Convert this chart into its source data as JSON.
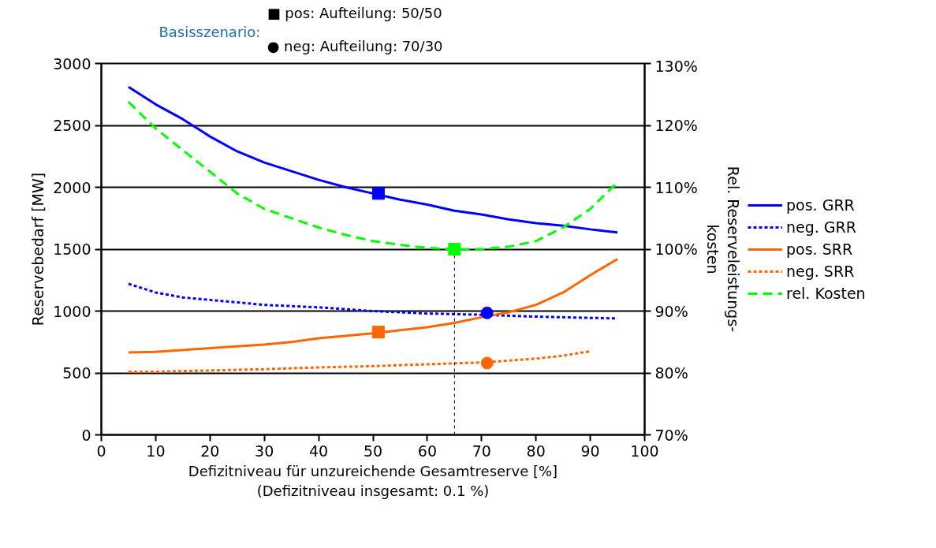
{
  "chart_data": {
    "type": "line",
    "xlabel": "Defizitniveau für unzureichende Gesamtreserve [%]\n(Defizitniveau insgesamt: 0.1 %)",
    "ylabel": "Reservebedarf [MW]",
    "y2label": "Rel. Reserveleistungs-\nkosten",
    "annotations": [
      "Basisszenario:",
      "■ pos: Aufteilung: 50/50",
      "● neg: Aufteilung: 70/30"
    ],
    "xlim": [
      0,
      100
    ],
    "xticks": [
      0,
      10,
      20,
      30,
      40,
      50,
      60,
      70,
      80,
      90,
      100
    ],
    "ylim": [
      0,
      3000
    ],
    "yticks": [
      0,
      500,
      1000,
      1500,
      2000,
      2500,
      3000
    ],
    "y2lim": [
      70,
      130
    ],
    "y2ticks": [
      {
        "value": 70,
        "label": "70%"
      },
      {
        "value": 80,
        "label": "80%"
      },
      {
        "value": 90,
        "label": "90%"
      },
      {
        "value": 100,
        "label": "100%"
      },
      {
        "value": 110,
        "label": "110%"
      },
      {
        "value": 120,
        "label": "120%"
      },
      {
        "value": 130,
        "label": "130%"
      }
    ],
    "grid": "y",
    "legend": "right",
    "series": [
      {
        "name": "pos. GRR",
        "color": "#0000ff",
        "line_style": "solid",
        "x": [
          5,
          10,
          15,
          20,
          25,
          30,
          35,
          40,
          45,
          50,
          55,
          60,
          65,
          70,
          75,
          80,
          85,
          90,
          95
        ],
        "values": [
          2810,
          2670,
          2550,
          2410,
          2290,
          2200,
          2130,
          2060,
          2000,
          1950,
          1900,
          1860,
          1810,
          1780,
          1740,
          1710,
          1690,
          1660,
          1635
        ]
      },
      {
        "name": "neg. GRR",
        "color": "#0000ff",
        "line_style": "dotted",
        "x": [
          5,
          10,
          15,
          20,
          25,
          30,
          40,
          50,
          60,
          70,
          80,
          90,
          95
        ],
        "values": [
          1220,
          1150,
          1110,
          1090,
          1070,
          1050,
          1030,
          1000,
          980,
          970,
          955,
          945,
          940
        ]
      },
      {
        "name": "pos. SRR",
        "color": "#ff6600",
        "line_style": "solid",
        "x": [
          5,
          10,
          20,
          30,
          35,
          40,
          50,
          60,
          65,
          70,
          75,
          80,
          85,
          90,
          95
        ],
        "values": [
          665,
          670,
          700,
          730,
          750,
          780,
          820,
          870,
          905,
          950,
          990,
          1050,
          1150,
          1290,
          1420
        ]
      },
      {
        "name": "neg. SRR",
        "color": "#ff6600",
        "line_style": "dotted",
        "x": [
          5,
          10,
          20,
          30,
          40,
          50,
          60,
          70,
          80,
          85,
          90
        ],
        "values": [
          510,
          510,
          520,
          530,
          545,
          555,
          570,
          585,
          615,
          640,
          675
        ]
      },
      {
        "name": "rel. Kosten",
        "axis": "y2",
        "color": "#00ff00",
        "line_style": "dashed",
        "x": [
          5,
          10,
          15,
          20,
          25,
          30,
          35,
          40,
          45,
          50,
          55,
          60,
          65,
          70,
          75,
          80,
          85,
          90,
          95
        ],
        "values": [
          123.8,
          119.5,
          116,
          112.5,
          109,
          106.5,
          105,
          103.5,
          102.3,
          101.3,
          100.7,
          100.2,
          100,
          100,
          100.4,
          101.3,
          103.5,
          106.5,
          110.8
        ]
      },
      {
        "axis": "y2",
        "color": "#000000",
        "line_style": "dashed",
        "x": [
          65,
          65
        ],
        "values": [
          70,
          100
        ]
      },
      {
        "type": "scatter",
        "marker": "square",
        "color": "#0000ff",
        "x": [
          51
        ],
        "values": [
          1950
        ]
      },
      {
        "type": "scatter",
        "marker": "square",
        "color": "#ff6600",
        "x": [
          51
        ],
        "values": [
          830
        ]
      },
      {
        "type": "scatter",
        "marker": "square",
        "axis": "y2",
        "color": "#00ff00",
        "x": [
          65
        ],
        "values": [
          100
        ]
      },
      {
        "type": "scatter",
        "marker": "circle",
        "color": "#0000ff",
        "x": [
          71
        ],
        "values": [
          985
        ]
      },
      {
        "type": "scatter",
        "marker": "circle",
        "color": "#ff6600",
        "x": [
          71
        ],
        "values": [
          580
        ]
      }
    ]
  }
}
